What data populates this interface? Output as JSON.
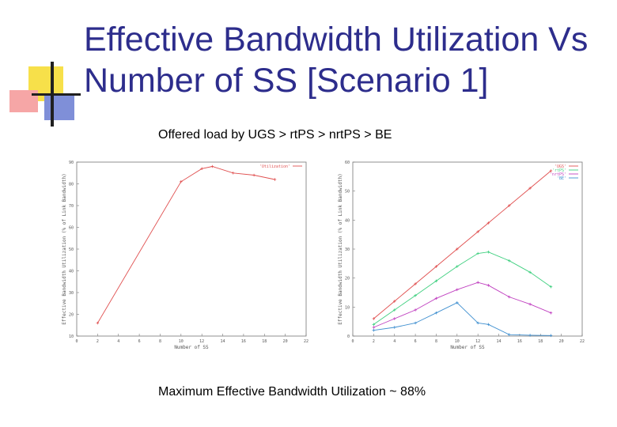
{
  "slide": {
    "title": "Effective Bandwidth Utilization Vs Number of SS [Scenario 1]",
    "subtitle": "Offered load by UGS > rtPS > nrtPS > BE",
    "caption": "Maximum Effective Bandwidth Utilization ~ 88%"
  },
  "chart_data": [
    {
      "type": "line",
      "xlabel": "Number of SS",
      "ylabel": "Effective Bandwidth Utilization (% of Link Bandwidth)",
      "xlim": [
        0,
        22
      ],
      "ylim": [
        10,
        90
      ],
      "xticks": [
        0,
        2,
        4,
        6,
        8,
        10,
        12,
        14,
        16,
        18,
        20,
        22
      ],
      "yticks": [
        10,
        20,
        30,
        40,
        50,
        60,
        70,
        80,
        90
      ],
      "x": [
        2,
        10,
        12,
        13,
        15,
        17,
        19
      ],
      "series": [
        {
          "name": "'Utilization'",
          "color": "#e05050",
          "values": [
            16,
            81,
            87,
            88,
            85,
            84,
            82
          ]
        }
      ]
    },
    {
      "type": "line",
      "xlabel": "Number of SS",
      "ylabel": "Effective Bandwidth Utilization (% of Link Bandwidth)",
      "xlim": [
        0,
        22
      ],
      "ylim": [
        0,
        60
      ],
      "xticks": [
        0,
        2,
        4,
        6,
        8,
        10,
        12,
        14,
        16,
        18,
        20,
        22
      ],
      "yticks": [
        0,
        10,
        20,
        30,
        40,
        50,
        60
      ],
      "x": [
        2,
        4,
        6,
        8,
        10,
        12,
        13,
        15,
        17,
        19
      ],
      "series": [
        {
          "name": "'UGS'",
          "color": "#e05050",
          "values": [
            6,
            12,
            18,
            24,
            30,
            36,
            39,
            45,
            51,
            57
          ]
        },
        {
          "name": "'rtPS'",
          "color": "#40d080",
          "values": [
            4,
            9,
            14,
            19,
            24,
            28.5,
            29,
            26,
            22,
            17
          ]
        },
        {
          "name": "'nrtPS'",
          "color": "#c040c0",
          "values": [
            3,
            6,
            9,
            13,
            16,
            18.5,
            17.5,
            13.5,
            11,
            8
          ]
        },
        {
          "name": "'BE'",
          "color": "#4090d0",
          "values": [
            2,
            3,
            4.5,
            8,
            11.5,
            4.5,
            4,
            0.5,
            0.3,
            0.2
          ]
        }
      ]
    }
  ]
}
